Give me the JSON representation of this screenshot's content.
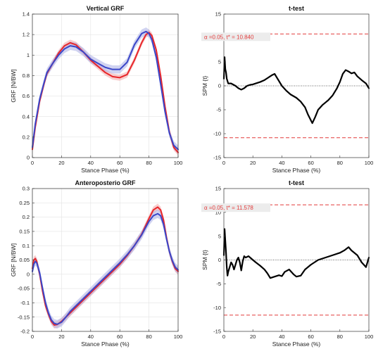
{
  "chart_data": [
    {
      "type": "line",
      "title": "Vertical GRF",
      "xlabel": "Stance Phase (%)",
      "ylabel": "GRF [N/BW]",
      "xlim": [
        0,
        100
      ],
      "ylim": [
        0,
        1.4
      ],
      "xticks": [
        0,
        20,
        40,
        60,
        80,
        100
      ],
      "yticks": [
        0,
        0.2,
        0.4,
        0.6,
        0.8,
        1,
        1.2,
        1.4
      ],
      "ytick_labels": [
        "0",
        "0.2",
        "0.4",
        "0.6",
        "0.8",
        "1",
        "1.2",
        "1.4"
      ],
      "grid": true,
      "series": [
        {
          "color": "#e8262a",
          "band_color": "#f3a6a6",
          "x": [
            0,
            2,
            5,
            8,
            10,
            14,
            18,
            22,
            26,
            30,
            35,
            40,
            45,
            50,
            55,
            60,
            65,
            70,
            75,
            78,
            80,
            82,
            85,
            88,
            91,
            94,
            97,
            100
          ],
          "y": [
            0.08,
            0.3,
            0.55,
            0.72,
            0.82,
            0.92,
            1.02,
            1.09,
            1.12,
            1.1,
            1.03,
            0.95,
            0.89,
            0.83,
            0.79,
            0.78,
            0.81,
            0.95,
            1.12,
            1.2,
            1.22,
            1.19,
            1.05,
            0.8,
            0.5,
            0.25,
            0.1,
            0.05
          ],
          "band": 0.03
        },
        {
          "color": "#3a46c8",
          "band_color": "#a9aee6",
          "x": [
            0,
            2,
            5,
            8,
            10,
            14,
            18,
            22,
            26,
            30,
            35,
            40,
            45,
            50,
            55,
            60,
            65,
            70,
            75,
            78,
            80,
            82,
            85,
            88,
            91,
            94,
            97,
            100
          ],
          "y": [
            0.1,
            0.33,
            0.57,
            0.73,
            0.83,
            0.92,
            1.0,
            1.06,
            1.09,
            1.08,
            1.03,
            0.96,
            0.92,
            0.88,
            0.86,
            0.86,
            0.93,
            1.1,
            1.21,
            1.23,
            1.21,
            1.15,
            0.98,
            0.72,
            0.45,
            0.24,
            0.12,
            0.08
          ],
          "band": 0.04
        }
      ]
    },
    {
      "type": "line",
      "title": "t-test",
      "xlabel": "Stance Phase (%)",
      "ylabel": "SPM {t}",
      "xlim": [
        0,
        100
      ],
      "ylim": [
        -15,
        15
      ],
      "xticks": [
        0,
        20,
        40,
        60,
        80,
        100
      ],
      "yticks": [
        -15,
        -10,
        -5,
        0,
        5,
        10,
        15
      ],
      "ytick_labels": [
        "-15",
        "-10",
        "-5",
        "0",
        "5",
        "10",
        "15"
      ],
      "grid": false,
      "threshold": 10.84,
      "threshold_color": "#e23a3a",
      "annotation": "α  =0.05,    t* = 10.840",
      "series": [
        {
          "color": "#000000",
          "x": [
            0,
            0.5,
            1,
            1.5,
            2,
            3,
            5,
            8,
            10,
            12,
            14,
            16,
            18,
            20,
            22,
            25,
            28,
            30,
            33,
            35,
            37,
            40,
            43,
            46,
            50,
            53,
            56,
            58,
            60,
            61,
            63,
            65,
            68,
            70,
            72,
            75,
            78,
            80,
            82,
            84,
            86,
            88,
            90,
            92,
            95,
            98,
            100
          ],
          "y": [
            1.5,
            6,
            3.5,
            2.8,
            1.5,
            0.5,
            0.5,
            0,
            -0.5,
            -0.8,
            -0.5,
            0,
            0.2,
            0.3,
            0.5,
            0.8,
            1.2,
            1.6,
            2.2,
            2.5,
            1.5,
            0,
            -1,
            -1.8,
            -2.5,
            -3.3,
            -4.5,
            -6,
            -7.2,
            -7.8,
            -6.5,
            -5,
            -4,
            -3.5,
            -3,
            -2,
            -0.5,
            0.8,
            2.5,
            3.3,
            3,
            2.6,
            2.8,
            2,
            1.2,
            0.5,
            -0.5
          ]
        }
      ]
    },
    {
      "type": "line",
      "title": "Anteroposterio GRF",
      "xlabel": "Stance Phase (%)",
      "ylabel": "GRF [N/BW]",
      "xlim": [
        0,
        100
      ],
      "ylim": [
        -0.2,
        0.3
      ],
      "xticks": [
        0,
        20,
        40,
        60,
        80,
        100
      ],
      "yticks": [
        -0.2,
        -0.15,
        -0.1,
        -0.05,
        0,
        0.05,
        0.1,
        0.15,
        0.2,
        0.25,
        0.3
      ],
      "ytick_labels": [
        "-0.2",
        "-0.15",
        "-0.1",
        "-0.05",
        "0",
        "0.05",
        "0.1",
        "0.15",
        "0.2",
        "0.25",
        "0.3"
      ],
      "grid": true,
      "series": [
        {
          "color": "#e8262a",
          "band_color": "#f3a6a6",
          "x": [
            0,
            1,
            2,
            3,
            5,
            7,
            9,
            11,
            13,
            15,
            17,
            20,
            23,
            26,
            30,
            35,
            40,
            45,
            50,
            55,
            60,
            65,
            70,
            75,
            80,
            83,
            86,
            88,
            90,
            92,
            94,
            96,
            98,
            100
          ],
          "y": [
            0.02,
            0.05,
            0.055,
            0.045,
            0.0,
            -0.06,
            -0.11,
            -0.14,
            -0.165,
            -0.178,
            -0.176,
            -0.165,
            -0.15,
            -0.135,
            -0.115,
            -0.09,
            -0.065,
            -0.04,
            -0.015,
            0.01,
            0.035,
            0.065,
            0.1,
            0.14,
            0.195,
            0.225,
            0.235,
            0.225,
            0.19,
            0.13,
            0.08,
            0.045,
            0.02,
            0.01
          ],
          "band": 0.012
        },
        {
          "color": "#3a46c8",
          "band_color": "#a9aee6",
          "x": [
            0,
            1,
            2,
            3,
            5,
            7,
            9,
            11,
            13,
            15,
            17,
            20,
            23,
            26,
            30,
            35,
            40,
            45,
            50,
            55,
            60,
            65,
            70,
            75,
            80,
            83,
            86,
            88,
            90,
            92,
            94,
            96,
            98,
            100
          ],
          "y": [
            0.01,
            0.035,
            0.045,
            0.04,
            0.005,
            -0.05,
            -0.1,
            -0.135,
            -0.16,
            -0.172,
            -0.175,
            -0.168,
            -0.15,
            -0.13,
            -0.11,
            -0.085,
            -0.06,
            -0.035,
            -0.01,
            0.015,
            0.04,
            0.068,
            0.1,
            0.138,
            0.185,
            0.205,
            0.212,
            0.205,
            0.175,
            0.125,
            0.08,
            0.048,
            0.025,
            0.015
          ],
          "band": 0.015
        }
      ]
    },
    {
      "type": "line",
      "title": "t-test",
      "xlabel": "Stance Phase (%)",
      "ylabel": "SPM {t}",
      "xlim": [
        0,
        100
      ],
      "ylim": [
        -15,
        15
      ],
      "xticks": [
        0,
        20,
        40,
        60,
        80,
        100
      ],
      "yticks": [
        -15,
        -10,
        -5,
        0,
        5,
        10,
        15
      ],
      "ytick_labels": [
        "-15",
        "-10",
        "-5",
        "0",
        "5",
        "10",
        "15"
      ],
      "grid": false,
      "threshold": 11.578,
      "threshold_color": "#e23a3a",
      "annotation": "α  =0.05,    t* = 11.578",
      "series": [
        {
          "color": "#000000",
          "x": [
            0,
            0.5,
            1,
            1.5,
            2,
            2.5,
            3,
            4,
            5,
            6,
            7,
            8,
            9,
            10,
            11,
            12,
            13,
            14,
            15,
            17,
            20,
            22,
            25,
            28,
            30,
            32,
            35,
            38,
            40,
            42,
            45,
            48,
            50,
            53,
            56,
            60,
            65,
            70,
            75,
            80,
            83,
            86,
            88,
            90,
            92,
            95,
            98,
            99,
            100
          ],
          "y": [
            1,
            6.5,
            4,
            1.5,
            -1.5,
            -3.3,
            -2.5,
            -1.5,
            -0.5,
            -1,
            -2,
            -1,
            0,
            0.5,
            -0.5,
            -2.2,
            -0.3,
            0.8,
            0.5,
            0.8,
            0,
            -0.5,
            -1.2,
            -2,
            -2.8,
            -3.8,
            -3.5,
            -3.2,
            -3.4,
            -2.5,
            -2,
            -3,
            -3.5,
            -3.3,
            -2,
            -1,
            0,
            0.5,
            1,
            1.5,
            2,
            2.7,
            2,
            1.5,
            1,
            -0.5,
            -1.5,
            -0.5,
            0.5
          ]
        }
      ]
    }
  ]
}
